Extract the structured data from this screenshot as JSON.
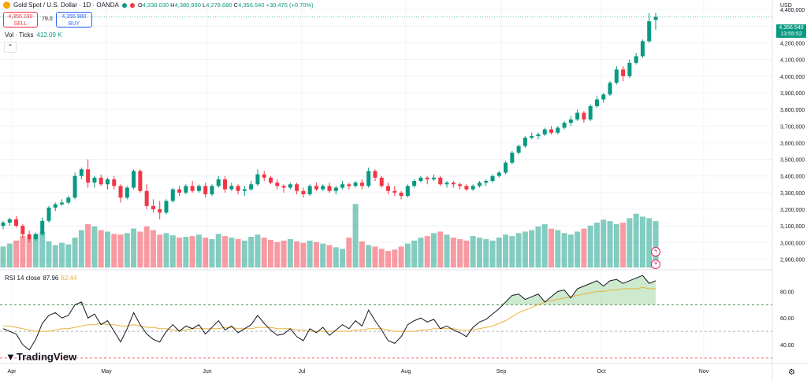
{
  "header": {
    "title": "Gold Spot / U.S. Dollar · 1D · OANDA",
    "ohlc": {
      "o_label": "O",
      "o": "4,338.030",
      "h_label": "H",
      "h": "4,380.990",
      "l_label": "L",
      "l": "4,278.680",
      "c_label": "C",
      "c": "4,356.540",
      "change": "+30.475 (+0.70%)"
    },
    "sell_price": "4,355.190",
    "sell_label": "SELL",
    "buy_price": "4,355.980",
    "buy_label": "BUY",
    "spread": "79.0"
  },
  "volume": {
    "label": "Vol · Ticks",
    "value": "412.09 K"
  },
  "collapse_label": "⌃",
  "rsi": {
    "label": "RSI 14 close",
    "value": "87.96",
    "ma_value": "82.44"
  },
  "logo": "TradingView",
  "price_axis": {
    "currency": "USD",
    "last_price": "4,356.540",
    "countdown": "13:55:52",
    "ticks": [
      "4,400,000",
      "4,300,000",
      "4,200,000",
      "4,100,000",
      "4,000,000",
      "3,900,000",
      "3,800,000",
      "3,700,000",
      "3,600,000",
      "3,500,000",
      "3,400,000",
      "3,300,000",
      "3,200,000",
      "3,100,000",
      "3,000,000",
      "2,900,000"
    ],
    "rsi_ticks": [
      "80.00",
      "60.00",
      "40.00"
    ]
  },
  "time_axis": [
    "Apr",
    "May",
    "Jun",
    "Jul",
    "Aug",
    "Sep",
    "Oct",
    "Nov"
  ],
  "colors": {
    "up": "#089981",
    "down": "#f23645",
    "rsi_line": "#131722",
    "rsi_ma": "#e8b33a",
    "grid": "#f0f3fa"
  },
  "chart_data": {
    "type": "candlestick",
    "y_price_range": [
      2850000,
      4420000
    ],
    "rsi_range": [
      30,
      95
    ],
    "candles": [
      [
        3100000,
        3130000,
        3080000,
        3120000
      ],
      [
        3120000,
        3150000,
        3100000,
        3140000
      ],
      [
        3140000,
        3160000,
        3090000,
        3100000
      ],
      [
        3100000,
        3110000,
        3030000,
        3050000
      ],
      [
        3050000,
        3070000,
        3000000,
        3020000
      ],
      [
        3020000,
        3060000,
        3010000,
        3050000
      ],
      [
        3050000,
        3150000,
        3040000,
        3130000
      ],
      [
        3130000,
        3220000,
        3120000,
        3210000
      ],
      [
        3210000,
        3240000,
        3190000,
        3230000
      ],
      [
        3230000,
        3260000,
        3220000,
        3240000
      ],
      [
        3240000,
        3280000,
        3230000,
        3270000
      ],
      [
        3270000,
        3420000,
        3260000,
        3400000
      ],
      [
        3400000,
        3450000,
        3380000,
        3440000
      ],
      [
        3440000,
        3500000,
        3330000,
        3360000
      ],
      [
        3360000,
        3400000,
        3330000,
        3390000
      ],
      [
        3390000,
        3410000,
        3340000,
        3350000
      ],
      [
        3350000,
        3390000,
        3320000,
        3380000
      ],
      [
        3380000,
        3400000,
        3320000,
        3340000
      ],
      [
        3340000,
        3350000,
        3240000,
        3270000
      ],
      [
        3270000,
        3340000,
        3260000,
        3330000
      ],
      [
        3330000,
        3440000,
        3320000,
        3430000
      ],
      [
        3430000,
        3440000,
        3300000,
        3310000
      ],
      [
        3310000,
        3350000,
        3200000,
        3220000
      ],
      [
        3220000,
        3260000,
        3180000,
        3200000
      ],
      [
        3200000,
        3250000,
        3140000,
        3180000
      ],
      [
        3180000,
        3260000,
        3170000,
        3250000
      ],
      [
        3250000,
        3330000,
        3240000,
        3320000
      ],
      [
        3320000,
        3340000,
        3280000,
        3300000
      ],
      [
        3300000,
        3350000,
        3290000,
        3340000
      ],
      [
        3340000,
        3370000,
        3300000,
        3310000
      ],
      [
        3310000,
        3350000,
        3300000,
        3340000
      ],
      [
        3340000,
        3360000,
        3270000,
        3290000
      ],
      [
        3290000,
        3350000,
        3280000,
        3340000
      ],
      [
        3340000,
        3400000,
        3330000,
        3380000
      ],
      [
        3380000,
        3400000,
        3300000,
        3320000
      ],
      [
        3320000,
        3360000,
        3310000,
        3340000
      ],
      [
        3340000,
        3350000,
        3290000,
        3310000
      ],
      [
        3310000,
        3340000,
        3280000,
        3320000
      ],
      [
        3320000,
        3370000,
        3310000,
        3350000
      ],
      [
        3350000,
        3440000,
        3340000,
        3410000
      ],
      [
        3410000,
        3430000,
        3370000,
        3390000
      ],
      [
        3390000,
        3400000,
        3350000,
        3360000
      ],
      [
        3360000,
        3380000,
        3320000,
        3340000
      ],
      [
        3340000,
        3350000,
        3300000,
        3330000
      ],
      [
        3330000,
        3360000,
        3320000,
        3350000
      ],
      [
        3350000,
        3360000,
        3290000,
        3310000
      ],
      [
        3310000,
        3330000,
        3270000,
        3290000
      ],
      [
        3290000,
        3350000,
        3280000,
        3340000
      ],
      [
        3340000,
        3360000,
        3310000,
        3320000
      ],
      [
        3320000,
        3350000,
        3310000,
        3340000
      ],
      [
        3340000,
        3360000,
        3300000,
        3310000
      ],
      [
        3310000,
        3340000,
        3290000,
        3330000
      ],
      [
        3330000,
        3370000,
        3320000,
        3350000
      ],
      [
        3350000,
        3360000,
        3320000,
        3340000
      ],
      [
        3340000,
        3370000,
        3330000,
        3360000
      ],
      [
        3360000,
        3380000,
        3320000,
        3340000
      ],
      [
        3340000,
        3450000,
        3330000,
        3430000
      ],
      [
        3430000,
        3440000,
        3370000,
        3390000
      ],
      [
        3390000,
        3400000,
        3330000,
        3340000
      ],
      [
        3340000,
        3360000,
        3290000,
        3310000
      ],
      [
        3310000,
        3340000,
        3280000,
        3300000
      ],
      [
        3300000,
        3310000,
        3260000,
        3280000
      ],
      [
        3280000,
        3350000,
        3270000,
        3340000
      ],
      [
        3340000,
        3380000,
        3330000,
        3370000
      ],
      [
        3370000,
        3400000,
        3360000,
        3390000
      ],
      [
        3390000,
        3400000,
        3350000,
        3380000
      ],
      [
        3380000,
        3410000,
        3370000,
        3390000
      ],
      [
        3390000,
        3400000,
        3340000,
        3350000
      ],
      [
        3350000,
        3370000,
        3330000,
        3360000
      ],
      [
        3360000,
        3370000,
        3330000,
        3350000
      ],
      [
        3350000,
        3360000,
        3320000,
        3340000
      ],
      [
        3340000,
        3350000,
        3310000,
        3320000
      ],
      [
        3320000,
        3350000,
        3310000,
        3340000
      ],
      [
        3340000,
        3370000,
        3330000,
        3360000
      ],
      [
        3360000,
        3380000,
        3340000,
        3370000
      ],
      [
        3370000,
        3410000,
        3360000,
        3400000
      ],
      [
        3400000,
        3430000,
        3390000,
        3420000
      ],
      [
        3420000,
        3490000,
        3410000,
        3480000
      ],
      [
        3480000,
        3550000,
        3470000,
        3540000
      ],
      [
        3540000,
        3590000,
        3530000,
        3580000
      ],
      [
        3580000,
        3640000,
        3570000,
        3630000
      ],
      [
        3630000,
        3660000,
        3620000,
        3640000
      ],
      [
        3640000,
        3660000,
        3620000,
        3650000
      ],
      [
        3650000,
        3690000,
        3640000,
        3680000
      ],
      [
        3680000,
        3700000,
        3650000,
        3660000
      ],
      [
        3660000,
        3700000,
        3650000,
        3690000
      ],
      [
        3690000,
        3730000,
        3680000,
        3720000
      ],
      [
        3720000,
        3760000,
        3700000,
        3740000
      ],
      [
        3740000,
        3800000,
        3730000,
        3780000
      ],
      [
        3780000,
        3790000,
        3720000,
        3740000
      ],
      [
        3740000,
        3830000,
        3730000,
        3820000
      ],
      [
        3820000,
        3880000,
        3810000,
        3860000
      ],
      [
        3860000,
        3900000,
        3840000,
        3890000
      ],
      [
        3890000,
        3970000,
        3880000,
        3960000
      ],
      [
        3960000,
        4060000,
        3950000,
        4040000
      ],
      [
        4040000,
        4060000,
        3970000,
        4000000
      ],
      [
        4000000,
        4100000,
        3990000,
        4080000
      ],
      [
        4080000,
        4140000,
        4070000,
        4120000
      ],
      [
        4120000,
        4220000,
        4110000,
        4210000
      ],
      [
        4210000,
        4380000,
        4200000,
        4330000
      ],
      [
        4338030,
        4380990,
        4278680,
        4356540
      ]
    ],
    "volume": [
      0.28,
      0.32,
      0.36,
      0.42,
      0.38,
      0.45,
      0.48,
      0.35,
      0.3,
      0.33,
      0.31,
      0.4,
      0.5,
      0.58,
      0.55,
      0.5,
      0.48,
      0.45,
      0.44,
      0.46,
      0.52,
      0.48,
      0.55,
      0.5,
      0.44,
      0.46,
      0.43,
      0.4,
      0.41,
      0.42,
      0.44,
      0.4,
      0.38,
      0.45,
      0.42,
      0.4,
      0.38,
      0.36,
      0.41,
      0.44,
      0.4,
      0.37,
      0.34,
      0.36,
      0.38,
      0.35,
      0.33,
      0.36,
      0.34,
      0.32,
      0.3,
      0.27,
      0.25,
      0.4,
      0.85,
      0.35,
      0.3,
      0.28,
      0.25,
      0.22,
      0.24,
      0.28,
      0.32,
      0.36,
      0.4,
      0.42,
      0.46,
      0.48,
      0.44,
      0.4,
      0.38,
      0.36,
      0.42,
      0.4,
      0.38,
      0.36,
      0.4,
      0.44,
      0.42,
      0.46,
      0.48,
      0.5,
      0.55,
      0.58,
      0.52,
      0.5,
      0.46,
      0.44,
      0.48,
      0.52,
      0.56,
      0.6,
      0.64,
      0.62,
      0.58,
      0.6,
      0.66,
      0.72,
      0.68,
      0.66,
      0.62
    ],
    "rsi": [
      52,
      50,
      48,
      40,
      36,
      44,
      56,
      62,
      64,
      60,
      62,
      70,
      72,
      60,
      63,
      55,
      58,
      50,
      42,
      52,
      64,
      55,
      48,
      44,
      42,
      50,
      55,
      50,
      54,
      52,
      55,
      48,
      53,
      58,
      51,
      54,
      49,
      52,
      55,
      62,
      56,
      51,
      47,
      48,
      52,
      46,
      43,
      52,
      49,
      53,
      47,
      51,
      55,
      52,
      58,
      54,
      66,
      58,
      51,
      43,
      41,
      46,
      55,
      58,
      60,
      57,
      59,
      52,
      54,
      51,
      49,
      46,
      53,
      57,
      59,
      63,
      67,
      72,
      77,
      78,
      74,
      76,
      78,
      72,
      76,
      80,
      81,
      75,
      82,
      84,
      86,
      88,
      84,
      88,
      89,
      86,
      88,
      90,
      92,
      86,
      88
    ],
    "rsi_ma": [
      54,
      54,
      53,
      52,
      51,
      50,
      50,
      50,
      51,
      52,
      52,
      53,
      54,
      55,
      55,
      56,
      55,
      55,
      54,
      54,
      55,
      54,
      53,
      53,
      52,
      52,
      51,
      51,
      51,
      52,
      52,
      52,
      52,
      52,
      53,
      53,
      52,
      52,
      52,
      53,
      53,
      53,
      52,
      52,
      52,
      51,
      51,
      50,
      50,
      50,
      50,
      50,
      50,
      50,
      51,
      51,
      52,
      52,
      52,
      51,
      50,
      50,
      50,
      50,
      51,
      51,
      52,
      52,
      52,
      52,
      51,
      51,
      51,
      52,
      53,
      54,
      56,
      58,
      61,
      64,
      66,
      68,
      70,
      72,
      73,
      74,
      75,
      76,
      77,
      78,
      79,
      80,
      80,
      81,
      81,
      82,
      82,
      82,
      83,
      82,
      82
    ]
  }
}
